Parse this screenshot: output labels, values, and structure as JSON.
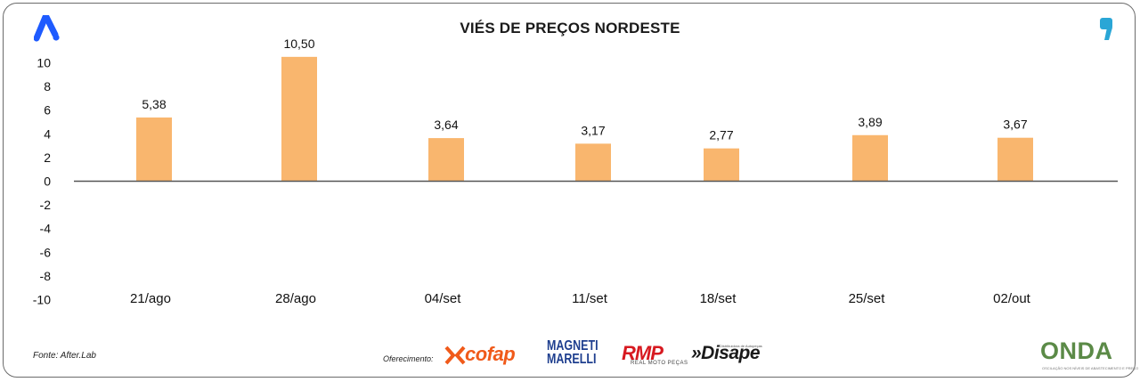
{
  "title": "VIÉS DE PREÇOS NORDESTE",
  "footer": {
    "source": "Fonte: After.Lab",
    "sponsor_label": "Oferecimento:",
    "sponsors": {
      "cofap": "cofap",
      "magneti": "MAGNETI MARELLI",
      "rmp": "RMP",
      "rmp_sub": "REAL MOTO PEÇAS",
      "disape": "»Disape",
      "disape_sub": "Distribuidora de Autopeças",
      "onda": "ONDA",
      "onda_sub": "OSCILAÇÃO NOS NÍVEIS DE ABASTECIMENTO E PREÇO"
    }
  },
  "icons": [
    "brand-a-icon",
    "comma-icon"
  ],
  "colors": {
    "bar": "#F9B66E",
    "axis": "#555555",
    "brand_blue": "#1E5BFF",
    "brand_teal": "#2AA6D6"
  },
  "chart_data": {
    "type": "bar",
    "title": "VIÉS DE PREÇOS NORDESTE",
    "categories": [
      "21/ago",
      "28/ago",
      "04/set",
      "11/set",
      "18/set",
      "25/set",
      "02/out"
    ],
    "values": [
      5.38,
      10.5,
      3.64,
      3.17,
      2.77,
      3.89,
      3.67
    ],
    "data_labels": [
      "5,38",
      "10,50",
      "3,64",
      "3,17",
      "2,77",
      "3,89",
      "3,67"
    ],
    "yticks": [
      10,
      8,
      6,
      4,
      2,
      0,
      -2,
      -4,
      -6,
      -8,
      -10
    ],
    "ylim": [
      -10,
      10
    ],
    "xlabel": "",
    "ylabel": "",
    "grid": false,
    "legend": false
  }
}
